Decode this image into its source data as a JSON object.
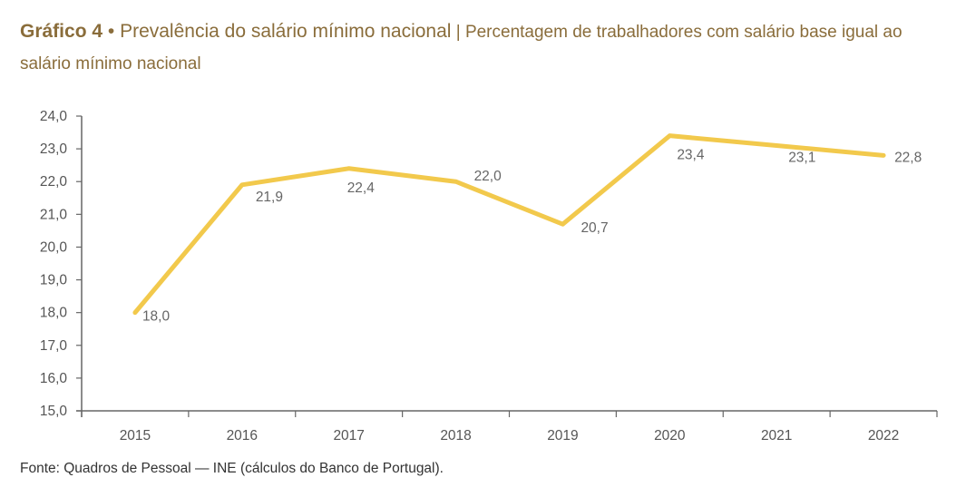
{
  "header": {
    "title_bold": "Gráfico 4",
    "bullet": " • ",
    "title_main": "Prevalência do salário mínimo nacional",
    "separator": " | ",
    "subtitle": "Percentagem de trabalhadores com salário base igual ao salário mínimo nacional"
  },
  "source": "Fonte: Quadros de Pessoal — INE (cálculos do Banco de Portugal).",
  "colors": {
    "line": "#f2c94c",
    "axis": "#666666",
    "title": "#8a6d3b"
  },
  "chart_data": {
    "type": "line",
    "title": "Gráfico 4 • Prevalência do salário mínimo nacional",
    "subtitle": "Percentagem de trabalhadores com salário base igual ao salário mínimo nacional",
    "xlabel": "",
    "ylabel": "",
    "categories": [
      "2015",
      "2016",
      "2017",
      "2018",
      "2019",
      "2020",
      "2021",
      "2022"
    ],
    "series": [
      {
        "name": "Prevalência do salário mínimo nacional",
        "values": [
          18.0,
          21.9,
          22.4,
          22.0,
          20.7,
          23.4,
          23.1,
          22.8
        ],
        "labels": [
          "18,0",
          "21,9",
          "22,4",
          "22,0",
          "20,7",
          "23,4",
          "23,1",
          "22,8"
        ]
      }
    ],
    "ylim": [
      15,
      24
    ],
    "yticks": [
      15,
      16,
      17,
      18,
      19,
      20,
      21,
      22,
      23,
      24
    ],
    "ytick_labels": [
      "15,0",
      "16,0",
      "17,0",
      "18,0",
      "19,0",
      "20,0",
      "21,0",
      "22,0",
      "23,0",
      "24,0"
    ],
    "grid": false,
    "legend": "none"
  }
}
